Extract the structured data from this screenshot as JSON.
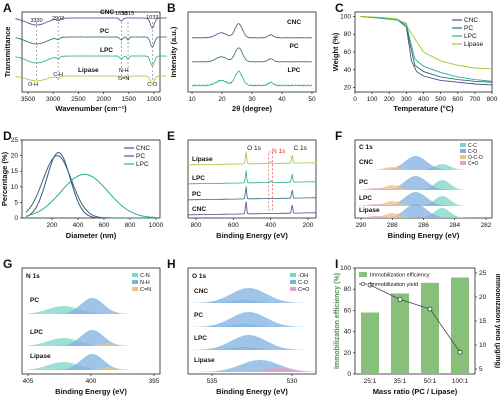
{
  "figure": {
    "panels": [
      "A",
      "B",
      "C",
      "D",
      "E",
      "F",
      "G",
      "H",
      "I"
    ]
  },
  "chart_data": [
    {
      "panel": "A",
      "type": "line",
      "xlabel": "Wavenumber (cm⁻¹)",
      "ylabel": "Transmittance",
      "xticks": [
        "3500",
        "3000",
        "2500",
        "2000",
        "1500",
        "1000"
      ],
      "series_labels": [
        "CNC",
        "PC",
        "LPC",
        "Lipase"
      ],
      "peak_labels": [
        "3330",
        "2902",
        "1650",
        "1515",
        "1033"
      ],
      "band_labels": [
        "O-H",
        "C-H",
        "N-H",
        "C=N",
        "C-O"
      ]
    },
    {
      "panel": "B",
      "type": "line",
      "xlabel": "2θ (degree)",
      "ylabel": "Intensity (a.u.)",
      "xticks": [
        "10",
        "20",
        "30",
        "40",
        "50"
      ],
      "series_labels": [
        "CNC",
        "PC",
        "LPC"
      ]
    },
    {
      "panel": "C",
      "type": "line",
      "xlabel": "Temperature (°C)",
      "ylabel": "Weight (%)",
      "xticks": [
        "0",
        "100",
        "200",
        "300",
        "400",
        "500",
        "600",
        "700",
        "800"
      ],
      "yticks": [
        "20",
        "40",
        "60",
        "80",
        "100"
      ],
      "legend": [
        "CNC",
        "PC",
        "LPC",
        "Lipase"
      ],
      "series": [
        {
          "name": "CNC",
          "x": [
            30,
            150,
            250,
            300,
            330,
            360,
            400,
            500,
            600,
            700,
            800
          ],
          "y": [
            100,
            98,
            96,
            88,
            50,
            38,
            33,
            28,
            26,
            24,
            23
          ]
        },
        {
          "name": "PC",
          "x": [
            30,
            150,
            250,
            300,
            320,
            350,
            400,
            500,
            600,
            700,
            800
          ],
          "y": [
            100,
            98,
            96,
            90,
            70,
            45,
            38,
            32,
            29,
            27,
            26
          ]
        },
        {
          "name": "LPC",
          "x": [
            30,
            150,
            250,
            300,
            320,
            350,
            400,
            500,
            600,
            700,
            800
          ],
          "y": [
            100,
            98,
            96,
            92,
            75,
            52,
            44,
            37,
            32,
            29,
            27
          ]
        },
        {
          "name": "Lipase",
          "x": [
            30,
            150,
            250,
            300,
            350,
            400,
            500,
            600,
            700,
            800
          ],
          "y": [
            100,
            99,
            97,
            90,
            75,
            60,
            50,
            45,
            42,
            41
          ]
        }
      ]
    },
    {
      "panel": "D",
      "type": "line",
      "xlabel": "Diameter (nm)",
      "ylabel": "Percentage (%)",
      "xticks": [
        "200",
        "400",
        "600",
        "800",
        "1000"
      ],
      "yticks": [
        "0",
        "5",
        "10",
        "15",
        "20",
        "25"
      ],
      "legend": [
        "CNC",
        "PC",
        "LPC"
      ],
      "series": [
        {
          "name": "CNC",
          "peak_x": 250,
          "peak_y": 21
        },
        {
          "name": "PC",
          "peak_x": 240,
          "peak_y": 20
        },
        {
          "name": "LPC",
          "peak_x": 450,
          "peak_y": 14
        }
      ]
    },
    {
      "panel": "E",
      "type": "line",
      "xlabel": "Binding Energy (eV)",
      "xticks": [
        "800",
        "600",
        "400",
        "200"
      ],
      "series_labels": [
        "Lipase",
        "LPC",
        "PC",
        "CNC"
      ],
      "peak_labels": [
        "O 1s",
        "N 1s",
        "C 1s"
      ]
    },
    {
      "panel": "F",
      "type": "area",
      "title": "C 1s",
      "xlabel": "Binding Energy (eV)",
      "xticks": [
        "290",
        "288",
        "286",
        "284",
        "282"
      ],
      "legend": [
        "C-C",
        "C-O",
        "O-C-O",
        "C=O"
      ],
      "series_labels": [
        "CNC",
        "PC",
        "LPC",
        "Lipase"
      ]
    },
    {
      "panel": "G",
      "type": "area",
      "title": "N 1s",
      "xlabel": "Binding Energy (eV)",
      "xticks": [
        "405",
        "400",
        "395"
      ],
      "legend": [
        "C-N",
        "N-H",
        "C=N"
      ],
      "series_labels": [
        "PC",
        "LPC",
        "Lipase"
      ]
    },
    {
      "panel": "H",
      "type": "area",
      "title": "O 1s",
      "xlabel": "Binding Energy (eV)",
      "xticks": [
        "535",
        "530"
      ],
      "legend": [
        "-OH",
        "C-O",
        "C=O"
      ],
      "series_labels": [
        "CNC",
        "PC",
        "LPC",
        "Lipase"
      ]
    },
    {
      "panel": "I",
      "type": "bar",
      "xlabel": "Mass ratio (PC / Lipase)",
      "ylabel": "Immobilization efficiency (%)",
      "ylabel_right": "Immobilization yield (μg/mg)",
      "categories": [
        "25:1",
        "35:1",
        "50:1",
        "100:1"
      ],
      "yticks": [
        "0",
        "20",
        "40",
        "60",
        "80",
        "100"
      ],
      "yticks_right": [
        "5",
        "10",
        "15",
        "20",
        "25"
      ],
      "legend": [
        "Immobilization efficiency",
        "Immobilization yield"
      ],
      "series": [
        {
          "name": "Immobilization efficiency",
          "values": [
            58,
            76,
            86,
            91
          ]
        },
        {
          "name": "Immobilization yield",
          "values": [
            22.5,
            19.5,
            17.5,
            8.5
          ]
        }
      ]
    }
  ]
}
